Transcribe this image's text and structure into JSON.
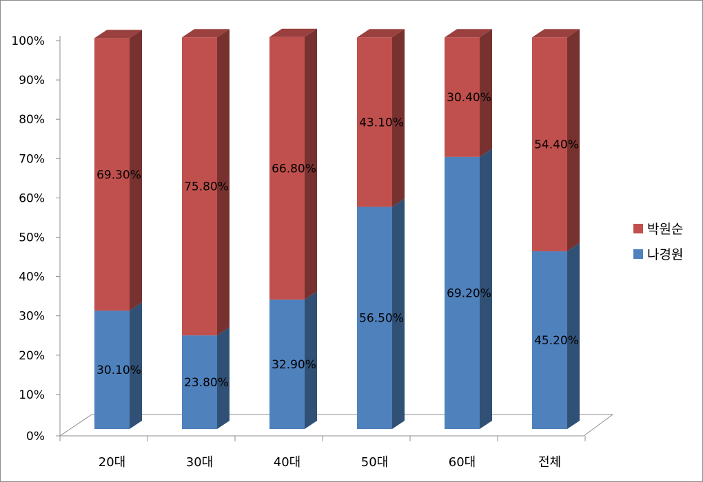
{
  "chart_data": {
    "type": "bar",
    "stacked": true,
    "normalized": true,
    "style": "3d-column",
    "title": "",
    "xlabel": "",
    "ylabel": "",
    "categories": [
      "20대",
      "30대",
      "40대",
      "50대",
      "60대",
      "전체"
    ],
    "ylim": [
      0,
      100
    ],
    "yticks": [
      0,
      10,
      20,
      30,
      40,
      50,
      60,
      70,
      80,
      90,
      100
    ],
    "ytick_labels": [
      "0%",
      "10%",
      "20%",
      "30%",
      "40%",
      "50%",
      "60%",
      "70%",
      "80%",
      "90%",
      "100%"
    ],
    "grid": false,
    "legend_position": "right",
    "series": [
      {
        "name": "나경원",
        "color": "#4f81bd",
        "values": [
          30.1,
          23.8,
          32.9,
          56.5,
          69.2,
          45.2
        ],
        "labels": [
          "30.10%",
          "23.80%",
          "32.90%",
          "56.50%",
          "69.20%",
          "45.20%"
        ]
      },
      {
        "name": "박원순",
        "color": "#c0504d",
        "values": [
          69.3,
          75.8,
          66.8,
          43.1,
          30.4,
          54.4
        ],
        "labels": [
          "69.30%",
          "75.80%",
          "66.80%",
          "43.10%",
          "30.40%",
          "54.40%"
        ]
      }
    ],
    "legend_order": [
      "박원순",
      "나경원"
    ]
  }
}
